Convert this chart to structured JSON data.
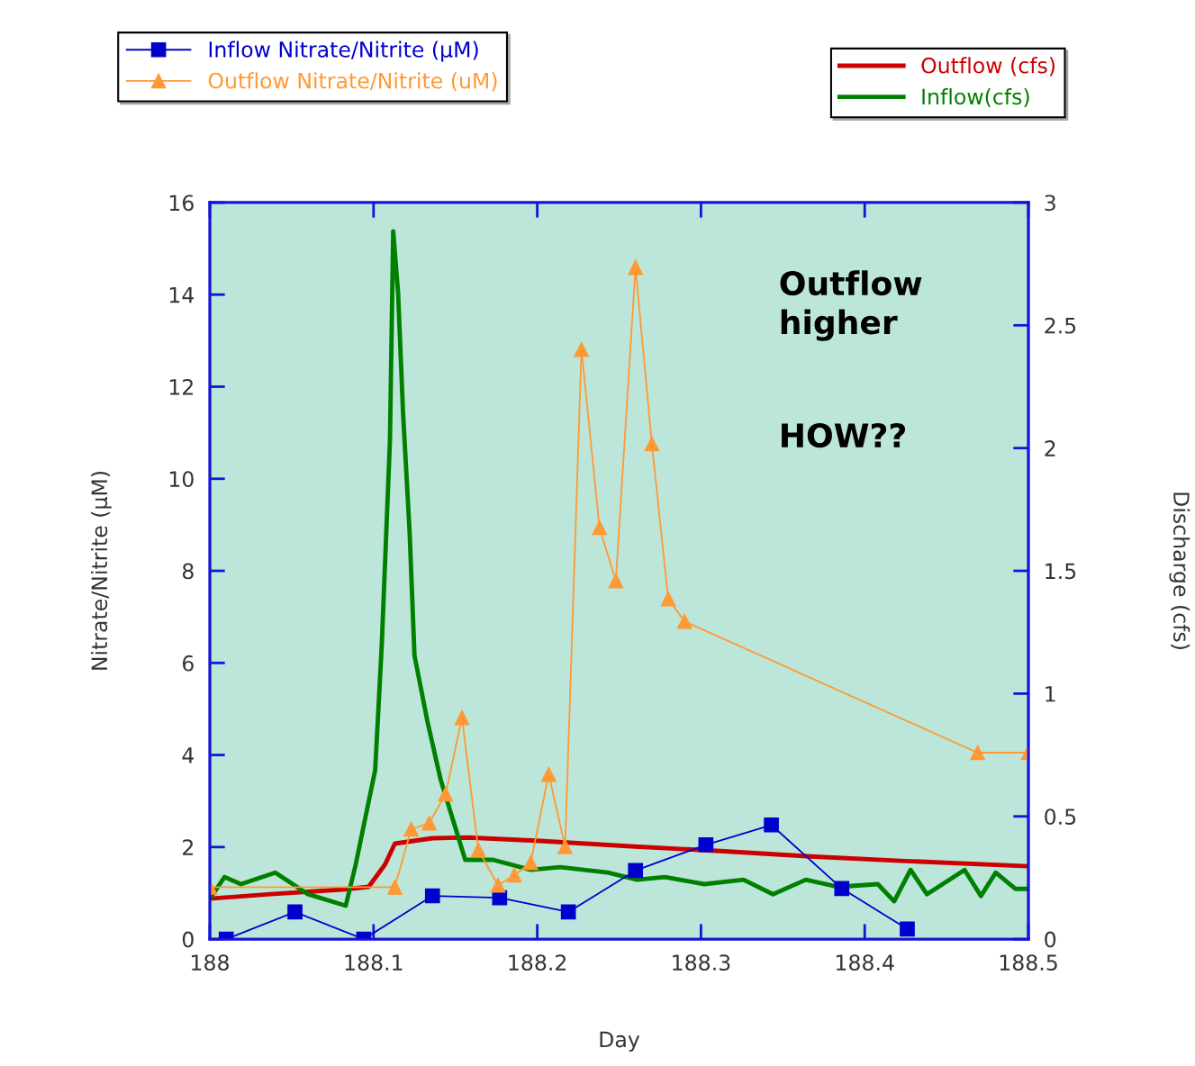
{
  "chart_data": {
    "type": "line",
    "xlabel": "Day",
    "ylabel": "Nitrate/Nitrite (µM)",
    "y2label": "Discharge (cfs)",
    "xlim": [
      188,
      188.5
    ],
    "xticks": [
      188,
      188.1,
      188.2,
      188.3,
      188.4,
      188.5
    ],
    "ylim": [
      0,
      16
    ],
    "yticks": [
      0,
      2,
      4,
      6,
      8,
      10,
      12,
      14,
      16
    ],
    "y2lim": [
      0,
      3
    ],
    "y2ticks": [
      0,
      0.5,
      1,
      1.5,
      2,
      2.5,
      3
    ],
    "grid": false,
    "legend": "top",
    "line_style": "solid",
    "annotations": [
      {
        "text": "Outflow\nhigher"
      },
      {
        "text": "HOW??"
      }
    ],
    "series": [
      {
        "name": "Inflow Nitrate/Nitrite (µM)",
        "color": "#0000cc",
        "marker": "square",
        "x": [
          188.01,
          188.052,
          188.094,
          188.136,
          188.177,
          188.219,
          188.26,
          188.303,
          188.343,
          188.386,
          188.426
        ],
        "values": [
          0,
          0.59,
          0,
          0.94,
          0.9,
          0.59,
          1.49,
          2.05,
          2.48,
          1.1,
          0.22
        ]
      },
      {
        "name": "Outflow Nitrate/Nitrite (uM)",
        "color": "#ff9933",
        "marker": "triangle",
        "x": [
          188.0,
          188.113,
          188.123,
          188.134,
          188.144,
          188.154,
          188.164,
          188.176,
          188.186,
          188.196,
          188.207,
          188.217,
          188.227,
          188.238,
          188.248,
          188.26,
          188.27,
          188.28,
          188.29,
          188.469,
          188.5
        ],
        "values": [
          1.13,
          1.13,
          2.39,
          2.52,
          3.15,
          4.81,
          1.94,
          1.17,
          1.39,
          1.66,
          3.58,
          2.01,
          12.81,
          8.94,
          7.78,
          14.59,
          10.76,
          7.39,
          6.9,
          4.05,
          4.05
        ]
      },
      {
        "name": "Outflow (cfs)",
        "color": "#cc0000",
        "axis": "y2",
        "marker": "none",
        "x": [
          188.0,
          188.037,
          188.081,
          188.097,
          188.107,
          188.113,
          188.136,
          188.158,
          188.202,
          188.257,
          188.312,
          188.367,
          188.422,
          188.5
        ],
        "values": [
          0.165,
          0.183,
          0.202,
          0.213,
          0.304,
          0.389,
          0.411,
          0.414,
          0.4,
          0.378,
          0.359,
          0.337,
          0.319,
          0.297
        ]
      },
      {
        "name": "Inflow(cfs)",
        "color": "#008000",
        "axis": "y2",
        "marker": "none",
        "x": [
          188.0,
          188.009,
          188.019,
          188.04,
          188.06,
          188.083,
          188.089,
          188.101,
          188.105,
          188.11,
          188.112,
          188.115,
          188.118,
          188.122,
          188.125,
          188.133,
          188.141,
          188.156,
          188.173,
          188.196,
          188.214,
          188.243,
          188.261,
          188.278,
          188.302,
          188.326,
          188.344,
          188.364,
          188.384,
          188.408,
          188.418,
          188.428,
          188.438,
          188.461,
          188.471,
          188.48,
          188.492,
          188.5
        ],
        "values": [
          0.165,
          0.253,
          0.224,
          0.271,
          0.183,
          0.136,
          0.301,
          0.689,
          1.196,
          2.028,
          2.883,
          2.63,
          2.145,
          1.661,
          1.155,
          0.884,
          0.649,
          0.323,
          0.323,
          0.282,
          0.293,
          0.271,
          0.242,
          0.253,
          0.224,
          0.242,
          0.183,
          0.242,
          0.213,
          0.224,
          0.154,
          0.282,
          0.183,
          0.282,
          0.176,
          0.271,
          0.205,
          0.205
        ]
      }
    ]
  }
}
